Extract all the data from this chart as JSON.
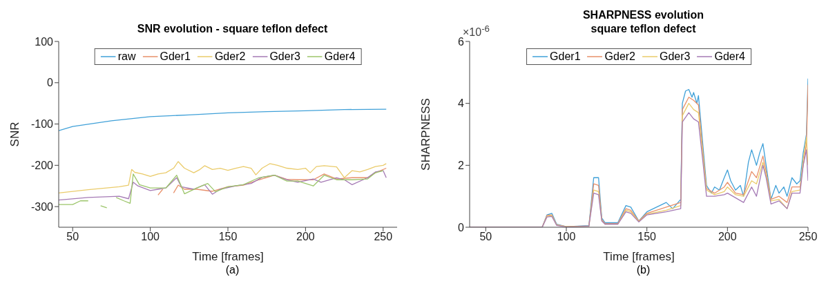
{
  "chart_data": [
    {
      "type": "line",
      "title": "SNR evolution - square teflon defect",
      "xlabel": "Time [frames]",
      "ylabel": "SNR",
      "xlim": [
        41,
        259
      ],
      "xticks": [
        50,
        100,
        150,
        200,
        250
      ],
      "ylim": [
        -350,
        100
      ],
      "yticks": [
        -300,
        -200,
        -100,
        0,
        100
      ],
      "legend": "top",
      "marker": "none",
      "line_style": "solid",
      "annotations": [
        "(a)"
      ],
      "series": [
        {
          "name": "raw",
          "color": "#3fa0d8",
          "x": [
            41,
            50,
            75,
            100,
            125,
            150,
            175,
            200,
            225,
            252
          ],
          "values": [
            -116,
            -106,
            -92,
            -82,
            -78,
            -73,
            -70,
            -68,
            -65,
            -64
          ]
        },
        {
          "name": "Gder1",
          "color": "#e8906a",
          "x": [
            105,
            108,
            112,
            115,
            118,
            122,
            130,
            140,
            150,
            160,
            170,
            180,
            188,
            195,
            205,
            212,
            220,
            230,
            240,
            245,
            252
          ],
          "values": [
            -272,
            -258,
            null,
            -267,
            -248,
            -258,
            -258,
            -263,
            -252,
            -248,
            -235,
            -224,
            -234,
            -235,
            -235,
            -221,
            -233,
            -230,
            -230,
            -218,
            -207
          ]
        },
        {
          "name": "Gder2",
          "color": "#eacb6a",
          "x": [
            41,
            60,
            80,
            86,
            88,
            90,
            95,
            100,
            105,
            110,
            115,
            118,
            122,
            128,
            132,
            135,
            140,
            145,
            150,
            155,
            160,
            165,
            168,
            172,
            177,
            182,
            188,
            195,
            200,
            203,
            207,
            212,
            220,
            225,
            230,
            235,
            240,
            245,
            250,
            252
          ],
          "values": [
            -267,
            -259,
            -252,
            -248,
            -210,
            -217,
            -221,
            -227,
            -221,
            -218,
            -207,
            -191,
            -207,
            -218,
            -210,
            -201,
            -210,
            -207,
            -212,
            -207,
            -203,
            -207,
            -223,
            -207,
            -196,
            -200,
            -207,
            -210,
            -207,
            -218,
            -203,
            -201,
            -204,
            -230,
            -213,
            -216,
            -210,
            -203,
            -200,
            -196
          ]
        },
        {
          "name": "Gder3",
          "color": "#a57ab5",
          "x": [
            41,
            60,
            80,
            86,
            89,
            92,
            100,
            105,
            110,
            117,
            120,
            128,
            135,
            140,
            145,
            155,
            165,
            172,
            180,
            188,
            195,
            205,
            210,
            220,
            225,
            230,
            240,
            245,
            250,
            252
          ],
          "values": [
            -284,
            -278,
            -275,
            -281,
            -241,
            -250,
            -261,
            -258,
            -255,
            -230,
            -252,
            -258,
            -247,
            -270,
            -258,
            -250,
            -244,
            -229,
            -224,
            -235,
            -241,
            -233,
            -241,
            -230,
            -235,
            -247,
            -230,
            -216,
            -213,
            -230
          ]
        },
        {
          "name": "Gder4",
          "color": "#9cc56a",
          "x": [
            41,
            50,
            55,
            60,
            64,
            68,
            72,
            74,
            78,
            83,
            87,
            89,
            93,
            100,
            110,
            117,
            122,
            130,
            137,
            142,
            150,
            160,
            170,
            180,
            188,
            195,
            205,
            212,
            220,
            230,
            240,
            245,
            250
          ],
          "values": [
            -295,
            -295,
            -286,
            -286,
            null,
            -298,
            -303,
            null,
            -278,
            -286,
            -292,
            -221,
            -247,
            -255,
            -255,
            -224,
            -269,
            -255,
            -244,
            -264,
            -252,
            -247,
            -230,
            -224,
            -238,
            -238,
            -250,
            -224,
            -235,
            -235,
            -233,
            -218,
            -213
          ]
        }
      ]
    },
    {
      "type": "line",
      "title": "SHARPNESS evolution",
      "subtitle": "square teflon defect",
      "xlabel": "Time [frames]",
      "ylabel": "SHARPNESS",
      "xlim": [
        40,
        250
      ],
      "xticks": [
        50,
        100,
        150,
        200,
        250
      ],
      "ylim": [
        0,
        6
      ],
      "yticks": [
        0,
        2,
        4,
        6
      ],
      "legend": "top",
      "marker": "none",
      "line_style": "solid",
      "annotations": [
        "×10$^{-6}$",
        "(b)"
      ],
      "series": [
        {
          "name": "Gder1",
          "color": "#3fa0d8",
          "x": [
            40,
            85,
            88,
            91,
            94,
            100,
            114,
            117,
            120,
            122,
            124,
            132,
            137,
            140,
            145,
            150,
            158,
            162,
            166,
            171,
            172,
            174,
            176,
            178,
            179,
            181,
            182,
            185,
            187,
            190,
            192,
            195,
            198,
            200,
            202,
            205,
            208,
            210,
            213,
            215,
            218,
            220,
            222,
            224,
            227,
            230,
            232,
            235,
            237,
            240,
            243,
            245,
            247,
            249,
            250
          ],
          "values": [
            0,
            0,
            0.4,
            0.45,
            0.1,
            0.02,
            0.05,
            1.6,
            1.6,
            0.3,
            0.15,
            0.15,
            0.7,
            0.65,
            0.2,
            0.5,
            0.7,
            0.8,
            0.6,
            0.9,
            4.0,
            4.4,
            4.45,
            4.2,
            4.35,
            4.0,
            4.25,
            2.5,
            1.35,
            1.1,
            1.3,
            1.2,
            1.6,
            1.85,
            1.5,
            1.2,
            1.35,
            1.0,
            2.1,
            2.5,
            2.0,
            2.4,
            2.7,
            2.0,
            0.9,
            1.35,
            1.1,
            1.3,
            1.0,
            1.6,
            1.4,
            1.5,
            2.4,
            3.0,
            4.8
          ]
        },
        {
          "name": "Gder2",
          "color": "#e8906a",
          "x": [
            40,
            85,
            88,
            91,
            94,
            100,
            114,
            117,
            120,
            122,
            124,
            132,
            137,
            140,
            145,
            150,
            162,
            171,
            172,
            176,
            179,
            182,
            185,
            187,
            192,
            198,
            200,
            205,
            210,
            215,
            218,
            222,
            224,
            227,
            232,
            237,
            240,
            245,
            247,
            249,
            250
          ],
          "values": [
            0,
            0,
            0.38,
            0.4,
            0.08,
            0.02,
            0.04,
            1.4,
            1.35,
            0.25,
            0.12,
            0.12,
            0.6,
            0.55,
            0.2,
            0.45,
            0.65,
            0.8,
            3.8,
            4.2,
            4.1,
            3.95,
            2.3,
            1.25,
            1.1,
            1.3,
            1.45,
            1.1,
            1.05,
            1.8,
            1.6,
            2.3,
            1.8,
            0.9,
            1.0,
            0.8,
            1.3,
            1.3,
            2.0,
            2.7,
            4.6
          ]
        },
        {
          "name": "Gder3",
          "color": "#eacb6a",
          "x": [
            40,
            85,
            88,
            91,
            94,
            100,
            114,
            117,
            120,
            122,
            124,
            132,
            137,
            140,
            145,
            150,
            162,
            171,
            172,
            176,
            179,
            182,
            185,
            187,
            192,
            198,
            200,
            205,
            210,
            215,
            218,
            222,
            224,
            227,
            232,
            237,
            240,
            245,
            247,
            249,
            250
          ],
          "values": [
            0,
            0,
            0.35,
            0.38,
            0.07,
            0.02,
            0.03,
            1.2,
            1.15,
            0.22,
            0.1,
            0.1,
            0.55,
            0.5,
            0.18,
            0.42,
            0.55,
            0.7,
            3.6,
            4.0,
            3.8,
            3.7,
            2.2,
            1.2,
            1.05,
            1.15,
            1.3,
            1.05,
            1.0,
            1.5,
            1.4,
            2.1,
            1.7,
            0.85,
            0.9,
            0.6,
            1.15,
            1.2,
            2.2,
            2.9,
            2.0
          ]
        },
        {
          "name": "Gder4",
          "color": "#a57ab5",
          "x": [
            40,
            85,
            88,
            91,
            94,
            100,
            114,
            117,
            120,
            122,
            124,
            132,
            137,
            140,
            145,
            150,
            162,
            171,
            172,
            176,
            179,
            182,
            185,
            187,
            192,
            198,
            200,
            205,
            210,
            215,
            218,
            222,
            224,
            227,
            232,
            237,
            240,
            245,
            247,
            249,
            250
          ],
          "values": [
            0,
            0,
            0.33,
            0.35,
            0.06,
            0.01,
            0.03,
            1.1,
            1.05,
            0.2,
            0.1,
            0.1,
            0.5,
            0.45,
            0.17,
            0.4,
            0.5,
            0.6,
            3.4,
            3.7,
            3.5,
            3.4,
            2.0,
            1.0,
            1.0,
            1.05,
            1.1,
            0.95,
            0.8,
            1.3,
            1.0,
            2.0,
            1.6,
            0.75,
            0.85,
            0.6,
            1.1,
            1.1,
            2.0,
            2.5,
            1.5
          ]
        }
      ]
    }
  ]
}
